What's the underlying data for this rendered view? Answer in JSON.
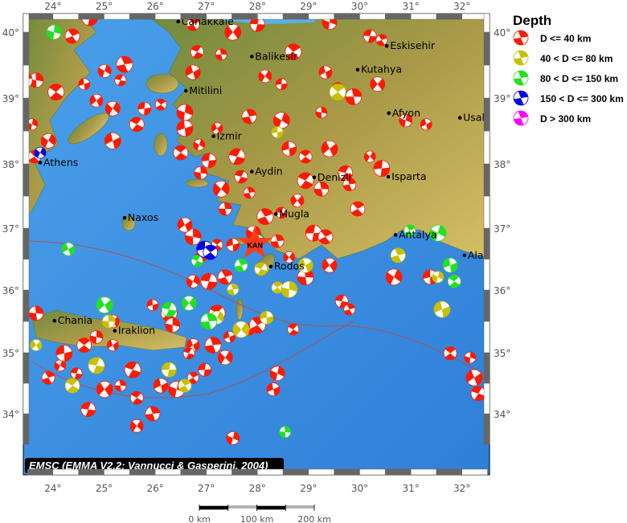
{
  "map": {
    "lon_ticks": [
      24,
      25,
      26,
      27,
      28,
      29,
      30,
      31,
      32
    ],
    "lat_ticks": [
      34,
      35,
      36,
      37,
      38,
      39,
      40
    ],
    "tick_suffix": "°",
    "colors": {
      "sea": "#3d8fe0",
      "land_low": "#6f8a3c",
      "land_high": "#d2bb63",
      "border": "#b05050"
    },
    "cities": [
      {
        "name": "Canakkale",
        "lon": 26.45,
        "lat": 40.16
      },
      {
        "name": "Balikesir",
        "lon": 27.89,
        "lat": 39.63
      },
      {
        "name": "Mitilini",
        "lon": 26.6,
        "lat": 39.11
      },
      {
        "name": "Izmir",
        "lon": 27.14,
        "lat": 38.42
      },
      {
        "name": "Aydin",
        "lon": 27.89,
        "lat": 37.88
      },
      {
        "name": "Denizli",
        "lon": 29.11,
        "lat": 37.79
      },
      {
        "name": "Mugla",
        "lon": 28.36,
        "lat": 37.22
      },
      {
        "name": "Rodos",
        "lon": 28.26,
        "lat": 36.38
      },
      {
        "name": "Eskisehir",
        "lon": 30.53,
        "lat": 39.79
      },
      {
        "name": "Kutahya",
        "lon": 29.96,
        "lat": 39.43
      },
      {
        "name": "Afyon",
        "lon": 30.57,
        "lat": 38.77
      },
      {
        "name": "Usak",
        "lon": 31.96,
        "lat": 38.7
      },
      {
        "name": "Isparta",
        "lon": 30.56,
        "lat": 37.8
      },
      {
        "name": "Antalya",
        "lon": 30.7,
        "lat": 36.89
      },
      {
        "name": "Alanya",
        "lon": 32.05,
        "lat": 36.56
      },
      {
        "name": "Athens",
        "lon": 23.75,
        "lat": 38.02
      },
      {
        "name": "Naxos",
        "lon": 25.4,
        "lat": 37.16
      },
      {
        "name": "Chania",
        "lon": 24.03,
        "lat": 35.51
      },
      {
        "name": "Iraklion",
        "lon": 25.21,
        "lat": 35.35
      }
    ],
    "star": {
      "label": "KAN",
      "lon": 27.95,
      "lat": 36.75,
      "color": "#ff3a1a"
    },
    "events": {
      "shallow": [
        [
          24.72,
          40.22
        ],
        [
          24.38,
          39.94
        ],
        [
          25.01,
          39.41
        ],
        [
          24.61,
          39.21
        ],
        [
          24.06,
          39.09
        ],
        [
          23.67,
          39.27
        ],
        [
          24.85,
          38.96
        ],
        [
          25.32,
          39.27
        ],
        [
          25.4,
          39.51
        ],
        [
          25.17,
          38.84
        ],
        [
          25.79,
          38.84
        ],
        [
          26.11,
          38.9
        ],
        [
          26.58,
          38.78
        ],
        [
          26.74,
          39.39
        ],
        [
          26.82,
          39.7
        ],
        [
          27.29,
          39.66
        ],
        [
          27.52,
          40.0
        ],
        [
          28.0,
          40.12
        ],
        [
          26.74,
          40.12
        ],
        [
          26.86,
          38.29
        ],
        [
          26.58,
          38.54
        ],
        [
          26.5,
          38.17
        ],
        [
          26.89,
          37.86
        ],
        [
          27.21,
          38.54
        ],
        [
          27.6,
          38.11
        ],
        [
          27.84,
          38.72
        ],
        [
          28.15,
          39.33
        ],
        [
          28.47,
          39.21
        ],
        [
          28.7,
          39.7
        ],
        [
          29.41,
          40.15
        ],
        [
          29.33,
          39.39
        ],
        [
          29.57,
          39.15
        ],
        [
          29.88,
          39.02
        ],
        [
          30.35,
          39.21
        ],
        [
          30.2,
          39.94
        ],
        [
          30.43,
          39.88
        ],
        [
          28.47,
          38.66
        ],
        [
          28.62,
          38.23
        ],
        [
          28.94,
          38.11
        ],
        [
          29.25,
          38.78
        ],
        [
          29.41,
          38.23
        ],
        [
          29.72,
          37.86
        ],
        [
          29.8,
          37.68
        ],
        [
          30.2,
          38.11
        ],
        [
          30.43,
          37.93
        ],
        [
          29.96,
          37.3
        ],
        [
          30.9,
          38.66
        ],
        [
          31.3,
          38.6
        ],
        [
          28.94,
          37.74
        ],
        [
          29.25,
          37.61
        ],
        [
          28.78,
          37.43
        ],
        [
          28.47,
          37.24
        ],
        [
          28.15,
          37.18
        ],
        [
          27.92,
          36.92
        ],
        [
          27.52,
          36.73
        ],
        [
          27.21,
          36.73
        ],
        [
          26.74,
          36.86
        ],
        [
          26.58,
          37.05
        ],
        [
          27.68,
          37.8
        ],
        [
          27.84,
          37.55
        ],
        [
          27.29,
          37.61
        ],
        [
          27.05,
          38.05
        ],
        [
          23.64,
          38.11
        ],
        [
          23.59,
          38.6
        ],
        [
          25.17,
          38.35
        ],
        [
          25.64,
          38.6
        ],
        [
          27.37,
          37.3
        ],
        [
          26.89,
          36.53
        ],
        [
          27.05,
          36.14
        ],
        [
          27.37,
          36.21
        ],
        [
          26.74,
          36.14
        ],
        [
          25.95,
          35.76
        ],
        [
          26.27,
          35.63
        ],
        [
          26.34,
          35.44
        ],
        [
          26.74,
          35.12
        ],
        [
          26.66,
          34.99
        ],
        [
          27.13,
          35.12
        ],
        [
          27.37,
          34.92
        ],
        [
          26.97,
          34.72
        ],
        [
          26.74,
          34.59
        ],
        [
          26.42,
          34.4
        ],
        [
          26.11,
          34.46
        ],
        [
          25.64,
          34.26
        ],
        [
          25.32,
          34.46
        ],
        [
          25.01,
          34.4
        ],
        [
          24.69,
          34.07
        ],
        [
          23.91,
          34.59
        ],
        [
          24.14,
          34.79
        ],
        [
          24.22,
          34.99
        ],
        [
          24.61,
          35.12
        ],
        [
          24.85,
          35.25
        ],
        [
          25.17,
          35.12
        ],
        [
          25.56,
          34.72
        ],
        [
          25.95,
          34.0
        ],
        [
          25.64,
          33.8
        ],
        [
          27.84,
          35.37
        ],
        [
          28.0,
          35.44
        ],
        [
          28.39,
          34.66
        ],
        [
          28.31,
          34.4
        ],
        [
          28.7,
          35.37
        ],
        [
          28.94,
          36.21
        ],
        [
          29.41,
          36.4
        ],
        [
          29.65,
          35.82
        ],
        [
          29.8,
          35.69
        ],
        [
          30.67,
          36.21
        ],
        [
          31.38,
          36.21
        ],
        [
          31.77,
          34.99
        ],
        [
          32.16,
          34.92
        ],
        [
          32.24,
          34.59
        ],
        [
          32.32,
          34.33
        ],
        [
          28.39,
          36.79
        ],
        [
          28.62,
          36.53
        ],
        [
          29.1,
          36.92
        ],
        [
          29.33,
          36.86
        ],
        [
          27.52,
          33.6
        ],
        [
          27.45,
          35.25
        ],
        [
          27.21,
          35.63
        ],
        [
          23.67,
          35.63
        ],
        [
          25.17,
          35.5
        ],
        [
          24.46,
          34.66
        ],
        [
          23.44,
          39.27
        ],
        [
          23.91,
          38.35
        ]
      ],
      "intermediate": [
        [
          28.18,
          35.56
        ],
        [
          28.39,
          36.04
        ],
        [
          28.62,
          36.01
        ],
        [
          28.94,
          36.4
        ],
        [
          28.07,
          36.34
        ],
        [
          27.52,
          36.01
        ],
        [
          27.68,
          35.37
        ],
        [
          26.27,
          34.72
        ],
        [
          26.58,
          34.46
        ],
        [
          31.53,
          36.21
        ],
        [
          31.61,
          35.69
        ],
        [
          24.38,
          34.46
        ],
        [
          25.09,
          35.5
        ],
        [
          23.67,
          35.12
        ],
        [
          24.85,
          34.79
        ],
        [
          30.75,
          36.56
        ],
        [
          27.21,
          35.56
        ],
        [
          28.39,
          38.48
        ],
        [
          29.57,
          39.09
        ]
      ],
      "deep": [
        [
          24.02,
          40.0
        ],
        [
          24.3,
          36.66
        ],
        [
          26.82,
          36.47
        ],
        [
          27.05,
          35.5
        ],
        [
          26.66,
          35.79
        ],
        [
          28.0,
          36.79
        ],
        [
          30.98,
          36.96
        ],
        [
          31.53,
          36.92
        ],
        [
          31.77,
          36.4
        ],
        [
          31.85,
          36.14
        ],
        [
          28.54,
          33.7
        ],
        [
          25.01,
          35.76
        ],
        [
          26.27,
          35.69
        ],
        [
          27.68,
          36.4
        ]
      ],
      "very_deep": [
        [
          23.75,
          38.17
        ],
        [
          26.97,
          36.66
        ],
        [
          27.08,
          36.61
        ]
      ],
      "ultra_deep": []
    }
  },
  "legend": {
    "title": "Depth",
    "items": [
      {
        "key": "shallow",
        "label": "D <= 40 km",
        "color": "#ff1a00"
      },
      {
        "key": "intermediate",
        "label": "40 < D <= 80 km",
        "color": "#c8c000"
      },
      {
        "key": "deep",
        "label": "80 < D <= 150 km",
        "color": "#22e022"
      },
      {
        "key": "very_deep",
        "label": "150 < D <= 300 km",
        "color": "#0000e0"
      },
      {
        "key": "ultra_deep",
        "label": "D > 300 km",
        "color": "#ff00ff"
      }
    ]
  },
  "credit": "EMSC (EMMA V2.2; Vannucci & Gasperini, 2004)",
  "scale_bar": {
    "labels": [
      "0 km",
      "100 km",
      "200 km"
    ]
  }
}
